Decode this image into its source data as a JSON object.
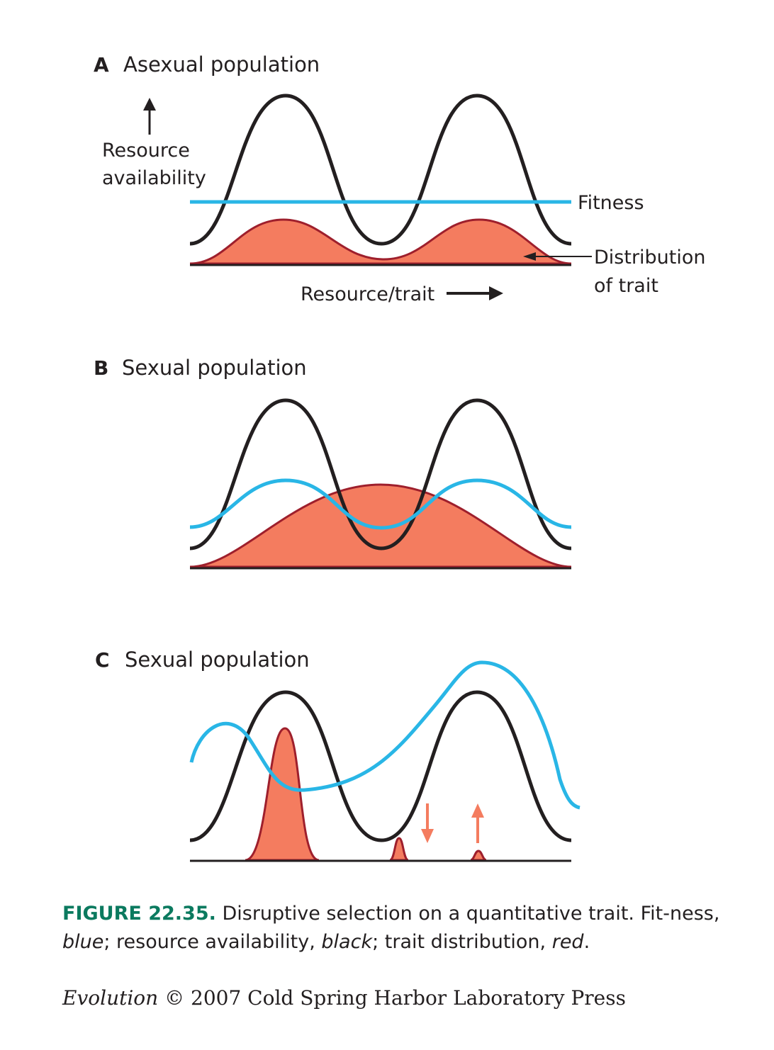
{
  "panels": {
    "a": {
      "letter": "A",
      "title": "Asexual population"
    },
    "b": {
      "letter": "B",
      "title": "Sexual population"
    },
    "c": {
      "letter": "C",
      "title": "Sexual population"
    }
  },
  "labels": {
    "resource_line1": "Resource",
    "resource_line2": "availability",
    "fitness": "Fitness",
    "distribution_line1": "Distribution",
    "distribution_line2": "of trait",
    "axis": "Resource/trait"
  },
  "caption": {
    "figure": "FIGURE 22.35.",
    "text1": " Disruptive selection on a quantitative trait. Fit-ness, ",
    "blue": "blue",
    "text2": "; resource availability, ",
    "black": "black",
    "text3": "; trait distribution, ",
    "red": "red",
    "text4": "."
  },
  "credit": {
    "book": "Evolution",
    "rest": " © 2007 Cold Spring Harbor Laboratory Press"
  },
  "colors": {
    "resource": "#231f20",
    "fitness": "#29b6e6",
    "trait_fill": "#f47c5f",
    "trait_stroke": "#9e1f2c",
    "arrow_change": "#f47c5f",
    "caption_accent": "#0b7a5f"
  }
}
